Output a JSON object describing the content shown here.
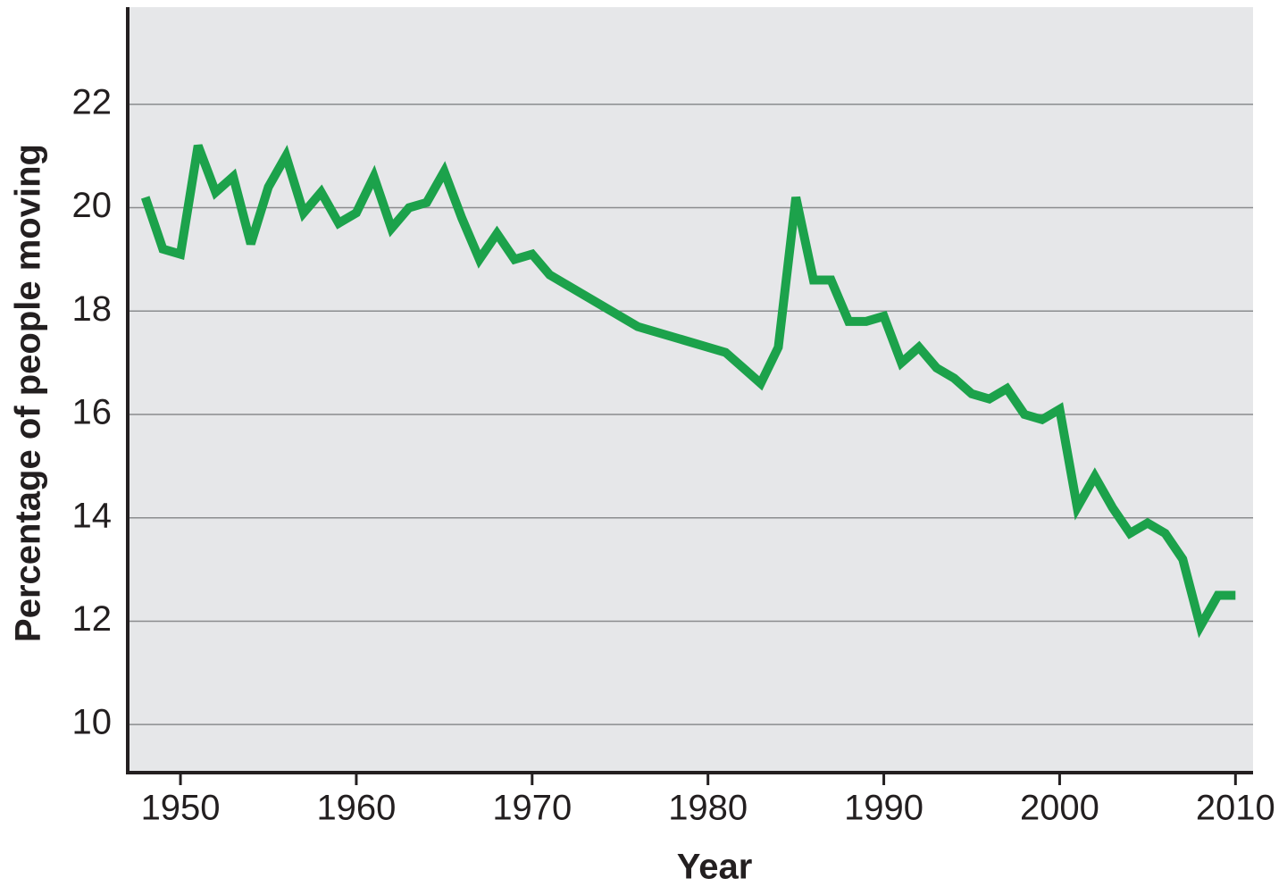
{
  "chart_data": {
    "type": "line",
    "x_label": "Year",
    "y_label": "Percentage of people moving",
    "x": [
      1948,
      1949,
      1950,
      1951,
      1952,
      1953,
      1954,
      1955,
      1956,
      1957,
      1958,
      1959,
      1960,
      1961,
      1962,
      1963,
      1964,
      1965,
      1966,
      1967,
      1968,
      1969,
      1970,
      1971,
      1976,
      1981,
      1982,
      1983,
      1984,
      1985,
      1986,
      1987,
      1988,
      1989,
      1990,
      1991,
      1992,
      1993,
      1994,
      1995,
      1996,
      1997,
      1998,
      1999,
      2000,
      2001,
      2002,
      2003,
      2004,
      2005,
      2006,
      2007,
      2008,
      2009,
      2010
    ],
    "series": [
      {
        "name": "Percentage of people moving",
        "color": "#1ca24b",
        "values": [
          20.2,
          19.2,
          19.1,
          21.2,
          20.3,
          20.6,
          19.3,
          20.4,
          21.0,
          19.9,
          20.3,
          19.7,
          19.9,
          20.6,
          19.6,
          20.0,
          20.1,
          20.7,
          19.8,
          19.0,
          19.5,
          19.0,
          19.1,
          18.7,
          17.7,
          17.2,
          16.9,
          16.6,
          17.3,
          20.2,
          18.6,
          18.6,
          17.8,
          17.8,
          17.9,
          17.0,
          17.3,
          16.9,
          16.7,
          16.4,
          16.3,
          16.5,
          16.0,
          15.9,
          16.1,
          14.2,
          14.8,
          14.2,
          13.7,
          13.9,
          13.7,
          13.2,
          11.9,
          12.5,
          12.5
        ]
      }
    ],
    "xlim": [
      1947,
      2011
    ],
    "xticks": [
      1950,
      1960,
      1970,
      1980,
      1990,
      2000,
      2010
    ],
    "ylim": [
      9.07,
      23.88
    ],
    "yticks": [
      10,
      12,
      14,
      16,
      18,
      20,
      22
    ],
    "grid": true
  }
}
